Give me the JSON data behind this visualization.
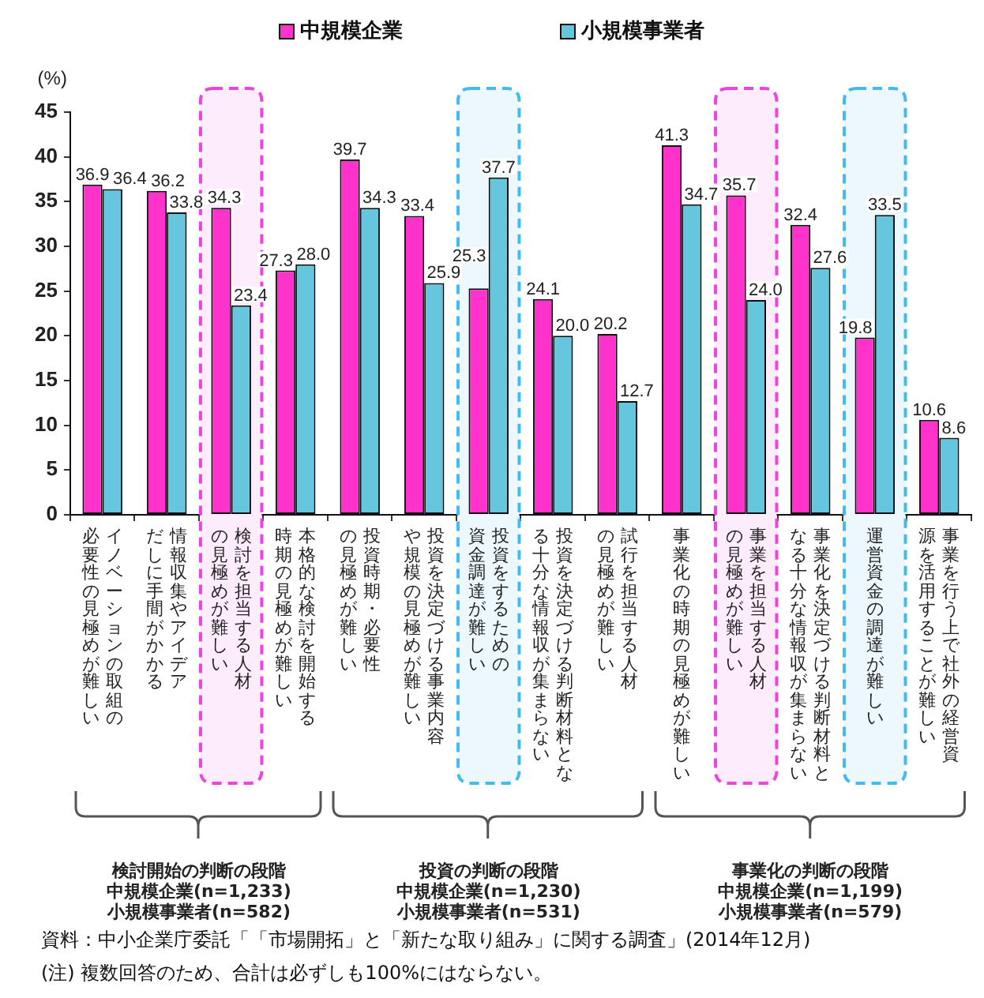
{
  "chart_data": {
    "type": "bar",
    "ylabel": "(%)",
    "legend": "top",
    "categories": [
      "イノベーションの取組の必要性の見極めが難しい",
      "情報収集やアイデアだしに手間がかかる",
      "検討を担当する人材の見極めが難しい",
      "本格的な検討を開始する時期の見極めが難しい",
      "投資時期・必要性の見極めが難しい",
      "投資を決定づける事業内容や規模の見極めが難しい",
      "投資をするための資金調達が難しい",
      "投資を決定づける判断材料となる十分な情報収が集まらない",
      "試行を担当する人材の見極めが難しい",
      "事業化の時期の見極めが難しい",
      "事業を担当する人材の見極めが難しい",
      "事業化を決定づける判断材料となる十分な情報収が集まらない",
      "運営資金の調達が難しい",
      "事業を行う上で社外の経営資源を活用することが難しい"
    ],
    "series": [
      {
        "name": "中規模企業",
        "color": "#ff33cc",
        "values": [
          36.9,
          36.2,
          34.3,
          27.3,
          39.7,
          33.4,
          25.3,
          24.1,
          20.2,
          41.3,
          35.7,
          32.4,
          19.8,
          10.6
        ],
        "value_labels": [
          "36.9",
          "36.2",
          "34.3",
          "27.3",
          "39.7",
          "33.4",
          "25.3",
          "24.1",
          "20.2",
          "41.3",
          "35.7",
          "32.4",
          "19.8",
          "10.6"
        ]
      },
      {
        "name": "小規模事業者",
        "color": "#66c6dd",
        "values": [
          36.4,
          33.8,
          23.4,
          28.0,
          34.3,
          25.9,
          37.7,
          20.0,
          12.7,
          34.7,
          24.0,
          27.6,
          33.5,
          8.6
        ],
        "value_labels": [
          "36.4",
          "33.8",
          "23.4",
          "28.0",
          "34.3",
          "25.9",
          "37.7",
          "20.0",
          "12.7",
          "34.7",
          "24.0",
          "27.6",
          "33.5",
          "8.6"
        ]
      }
    ],
    "ylim": [
      0,
      45
    ],
    "yticks": [
      0,
      5,
      10,
      15,
      20,
      25,
      30,
      35,
      40,
      45
    ],
    "bands": [
      {
        "axis": "x",
        "from": "検討を担当する人材の見極めが難しい",
        "to": "検討を担当する人材の見極めが難しい",
        "color": "#ee44dd"
      },
      {
        "axis": "x",
        "from": "投資をするための資金調達が難しい",
        "to": "投資をするための資金調達が難しい",
        "color": "#44bbee"
      },
      {
        "axis": "x",
        "from": "事業を担当する人材の見極めが難しい",
        "to": "事業を担当する人材の見極めが難しい",
        "color": "#ee44dd"
      },
      {
        "axis": "x",
        "from": "運営資金の調達が難しい",
        "to": "運営資金の調達が難しい",
        "color": "#44bbee"
      }
    ],
    "annotations": [
      "検討開始の判断の段階",
      "中規模企業(n=1,233)",
      "小規模事業者(n=582)",
      "投資の判断の段階",
      "中規模企業(n=1,230)",
      "小規模事業者(n=531)",
      "事業化の判断の段階",
      "中規模企業(n=1,199)",
      "小規模事業者(n=579)",
      "資料：中小企業庁委託「「市場開拓」と「新たな取り組み」に関する調査」(2014年12月)",
      "(注) 複数回答のため、合計は必ずしも100%にはならない。"
    ]
  }
}
